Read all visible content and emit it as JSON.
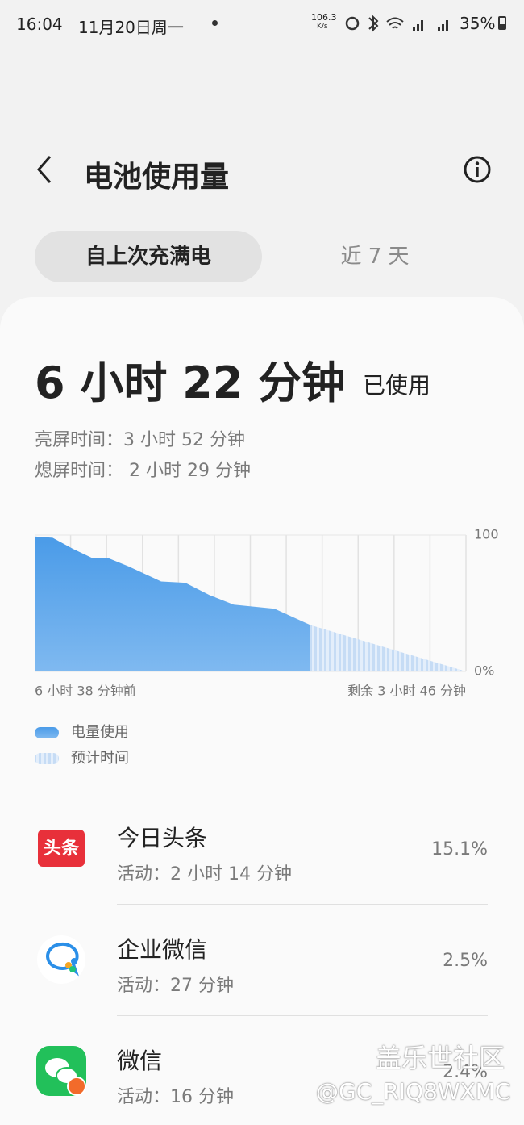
{
  "status": {
    "time": "16:04",
    "date": "11月20日周一",
    "speed": "106.3",
    "speed_unit": "K/s",
    "battery": "35%"
  },
  "header": {
    "title": "电池使用量"
  },
  "tabs": [
    "自上次充满电",
    "近 7 天"
  ],
  "summary": {
    "total": "6 小时 22 分钟",
    "suffix": "已使用",
    "screen_on": "亮屏时间：3 小时 52 分钟",
    "screen_off": "熄屏时间： 2 小时 29 分钟"
  },
  "chart_data": {
    "type": "area",
    "x": [
      0,
      26,
      55,
      84,
      107,
      136,
      183,
      218,
      253,
      288,
      347,
      399,
      624
    ],
    "xlim": [
      0,
      624
    ],
    "xticks": [
      {
        "value": 0,
        "label": "6 小时 38 分钟前"
      },
      {
        "value": 624,
        "label": "剩余 3 小时 46 分钟"
      }
    ],
    "ylim": [
      0,
      100
    ],
    "yticks": [
      100,
      {
        "value": 0,
        "label": "0%"
      }
    ],
    "series": [
      {
        "name": "电量使用",
        "color": "#4a9be8",
        "values": [
          99,
          98,
          90,
          83,
          83,
          77,
          66,
          65,
          56,
          49,
          46,
          34,
          null
        ]
      },
      {
        "name": "预计时间",
        "color": "#c6dcf5",
        "values": [
          null,
          null,
          null,
          null,
          null,
          null,
          null,
          null,
          null,
          null,
          null,
          34,
          0
        ]
      }
    ]
  },
  "apps": [
    {
      "icon_text": "头条",
      "name": "今日头条",
      "activity": "活动：2 小时 14 分钟",
      "percent": "15.1%"
    },
    {
      "name": "企业微信",
      "activity": "活动：27 分钟",
      "percent": "2.5%"
    },
    {
      "name": "微信",
      "activity": "活动：16 分钟",
      "percent": "2.4%"
    }
  ],
  "watermark": [
    "盖乐世社区",
    "@GC_RIQ8WXMC"
  ]
}
